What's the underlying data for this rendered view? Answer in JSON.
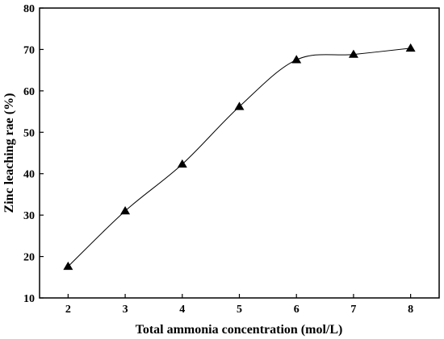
{
  "chart_data": {
    "type": "scatter",
    "title": "",
    "xlabel": "Total ammonia concentration (mol/L)",
    "ylabel": "Zinc leaching rae (%)",
    "xlim": [
      1.5,
      8.5
    ],
    "ylim": [
      10,
      80
    ],
    "xticks": [
      "2",
      "3",
      "4",
      "5",
      "6",
      "7",
      "8"
    ],
    "yticks": [
      "10",
      "20",
      "30",
      "40",
      "50",
      "60",
      "70",
      "80"
    ],
    "grid": false,
    "marker": "triangle",
    "fit_line": "smooth",
    "series": [
      {
        "x": [
          2,
          3,
          4,
          5,
          6,
          7,
          8
        ],
        "y": [
          17.6,
          31.0,
          42.3,
          56.2,
          67.5,
          68.8,
          70.3
        ]
      }
    ]
  }
}
